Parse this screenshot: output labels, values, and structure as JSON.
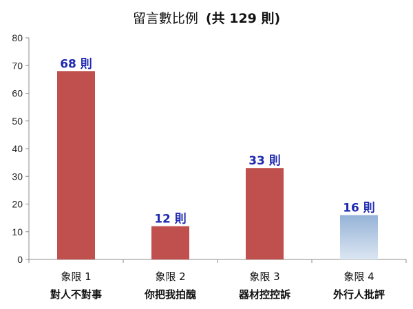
{
  "colors": {
    "bar_fill": "#c0504d",
    "bar_fill_gradient_top": "#95b3d7",
    "bar_fill_gradient_bottom": "#dce6f2",
    "data_label": "#1f2ab0",
    "axis": "#8c8c8c"
  },
  "chart_data": {
    "type": "bar",
    "title": "留言數比例",
    "title_suffix": "(共 129 則)",
    "categories": [
      {
        "line1": "象限 1",
        "line2": "對人不對事"
      },
      {
        "line1": "象限 2",
        "line2": "你把我拍醜"
      },
      {
        "line1": "象限 3",
        "line2": "器材控控訴"
      },
      {
        "line1": "象限 4",
        "line2": "外行人批評"
      }
    ],
    "values": [
      68,
      12,
      33,
      16
    ],
    "data_labels": [
      "68 則",
      "12 則",
      "33 則",
      "16 則"
    ],
    "bar_styles": [
      "solid",
      "solid",
      "solid",
      "gradient"
    ],
    "ylim": [
      0,
      80
    ],
    "yticks": [
      0,
      10,
      20,
      30,
      40,
      50,
      60,
      70,
      80
    ],
    "grid": false,
    "legend": "none",
    "xlabel": "",
    "ylabel": ""
  }
}
